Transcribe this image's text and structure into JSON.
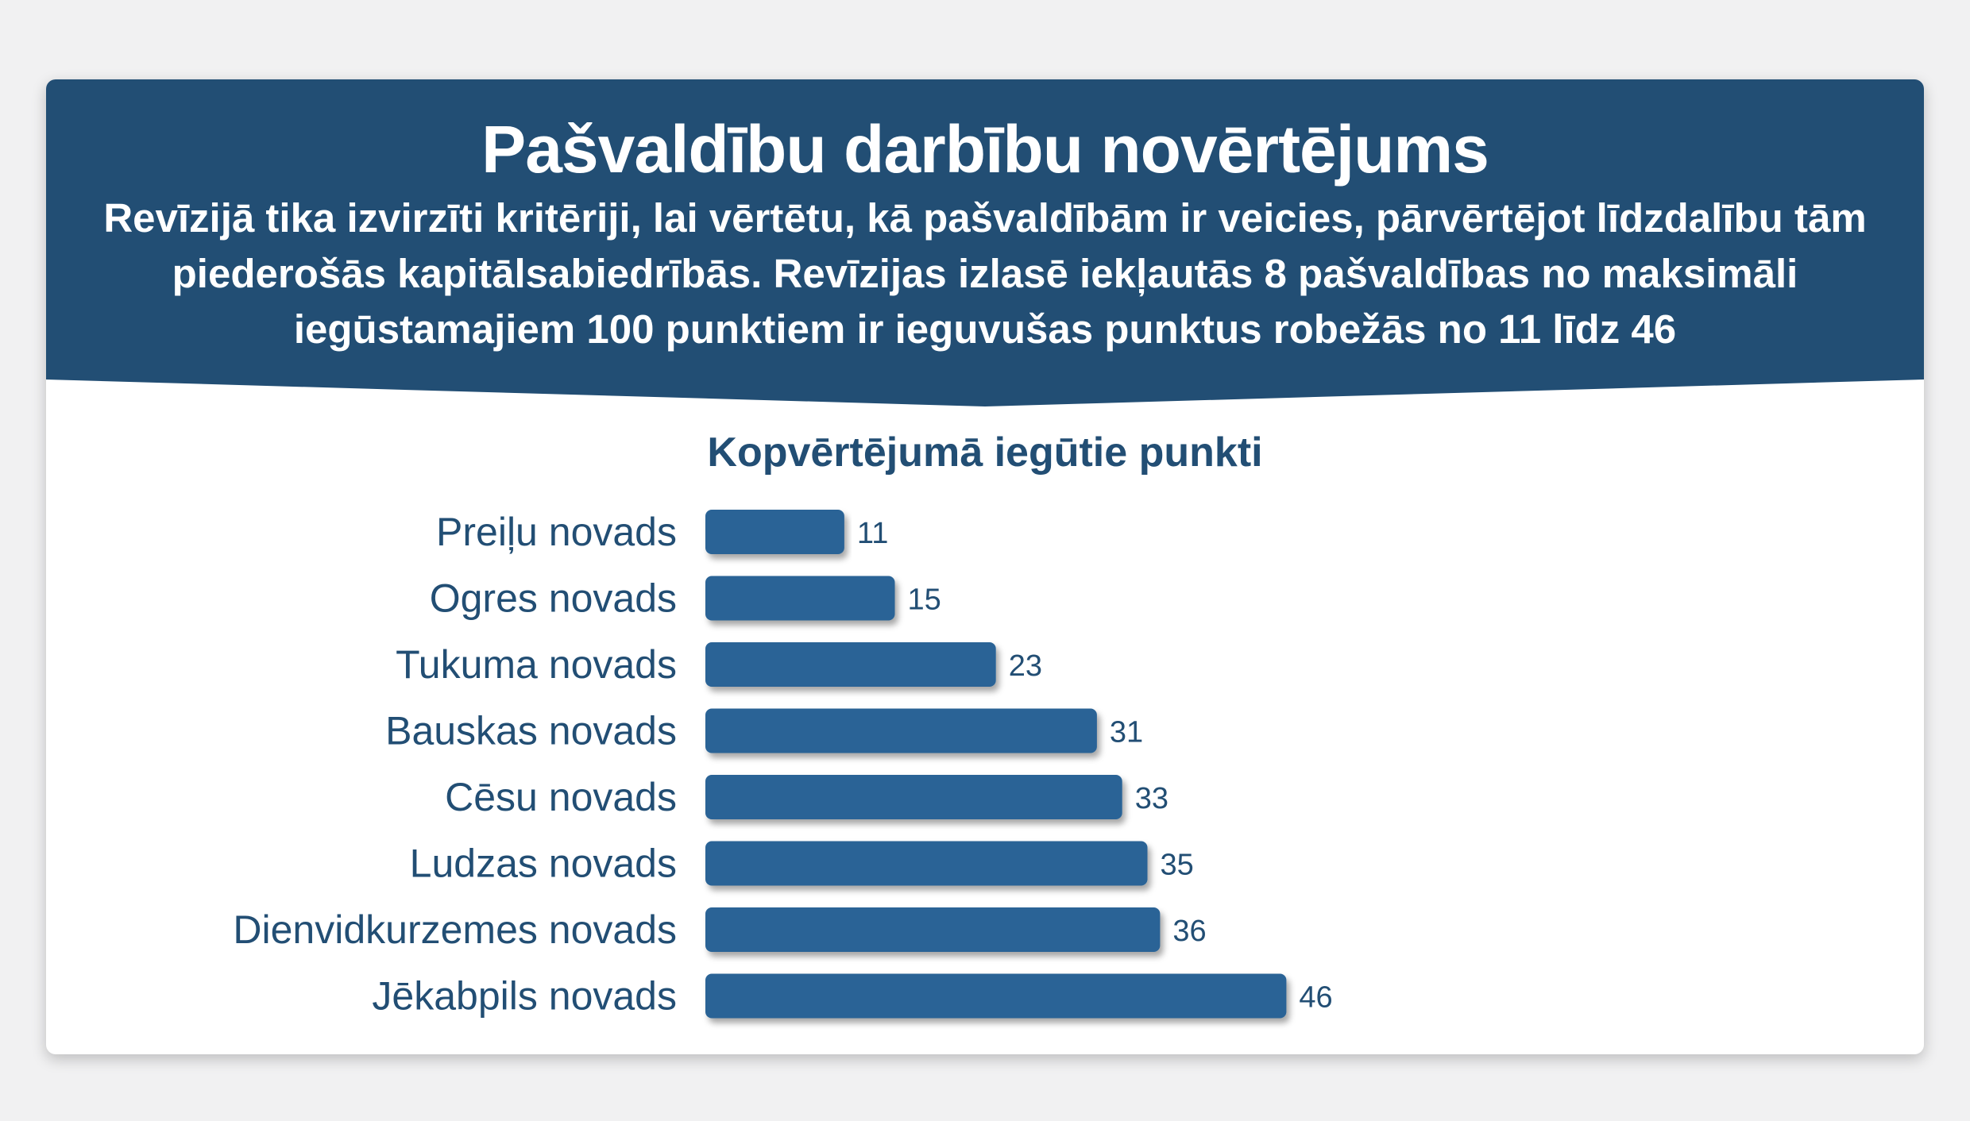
{
  "header": {
    "title": "Pašvaldību darbību novērtējums",
    "subtitle": "Revīzijā tika izvirzīti kritēriji, lai vērtētu, kā pašvaldībām ir veicies, pārvērtējot līdzdalību tām piederošās kapitālsabiedrībās. Revīzijas izlasē iekļautās 8 pašvaldības no maksimāli iegūstamajiem 100 punktiem ir ieguvušas punktus robežās no 11 līdz 46"
  },
  "colors": {
    "banner": "#224e74",
    "bar": "#2a6496",
    "text": "#224e74",
    "background": "#f1f1f2"
  },
  "chart_data": {
    "type": "bar",
    "orientation": "horizontal",
    "title": "Kopvērtējumā iegūtie punkti",
    "categories": [
      "Preiļu novads",
      "Ogres novads",
      "Tukuma novads",
      "Bauskas novads",
      "Cēsu novads",
      "Ludzas novads",
      "Dienvidkurzemes novads",
      "Jēkabpils novads"
    ],
    "values": [
      11,
      15,
      23,
      31,
      33,
      35,
      36,
      46
    ],
    "xlim": [
      0,
      46
    ],
    "grid": false,
    "legend": "none"
  }
}
